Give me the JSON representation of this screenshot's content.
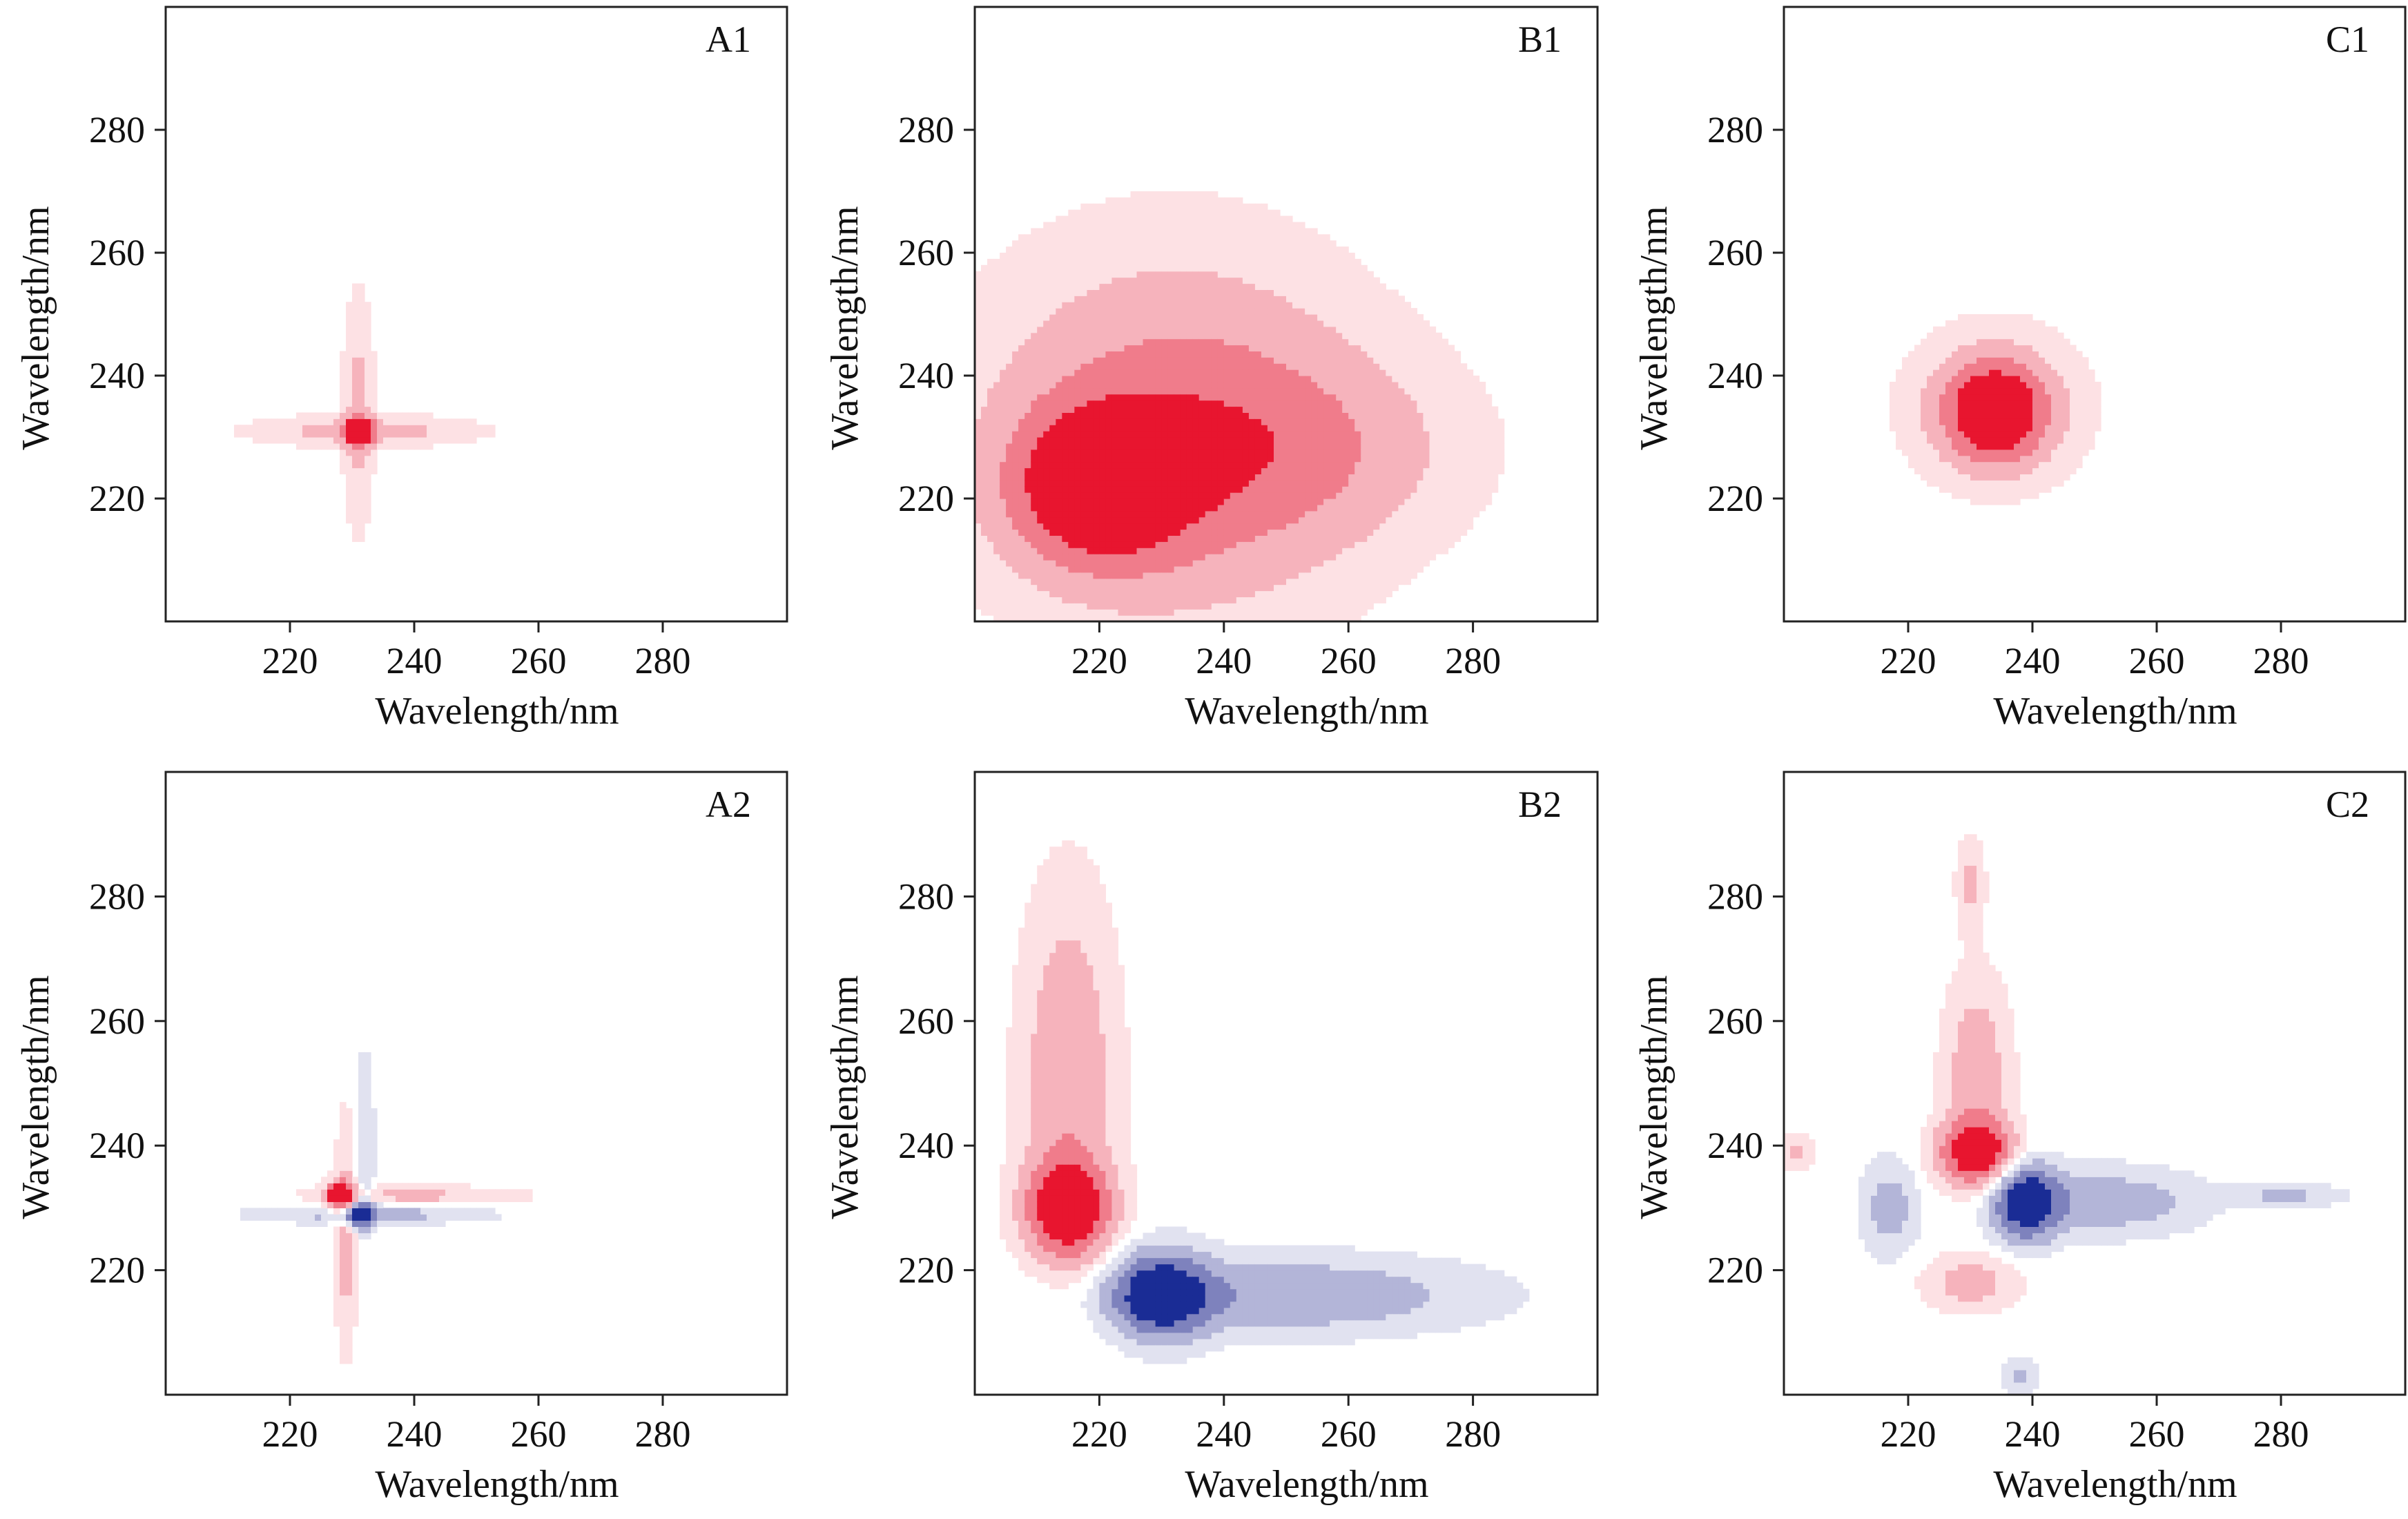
{
  "figure": {
    "description_free": true
  },
  "chart_data": [
    {
      "panel_label": "A1",
      "type": "heatmap",
      "xlabel": "Wavelength/nm",
      "ylabel": "Wavelength/nm",
      "xlim": [
        200,
        300
      ],
      "ylim": [
        200,
        300
      ],
      "xticks": [
        "220",
        "240",
        "260",
        "280"
      ],
      "yticks": [
        "220",
        "240",
        "260",
        "280"
      ],
      "grid": false,
      "peaks": [
        {
          "sign": "positive",
          "x": 231,
          "y": 231,
          "spread_x": 1.5,
          "spread_y": 1.5,
          "intensity": 1.0
        },
        {
          "sign": "positive",
          "x": 232,
          "y": 231,
          "spread_x": 12,
          "spread_y": 1.6,
          "intensity": 0.3
        },
        {
          "sign": "positive",
          "x": 231,
          "y": 234,
          "spread_x": 1.6,
          "spread_y": 12,
          "intensity": 0.28
        }
      ]
    },
    {
      "panel_label": "B1",
      "type": "heatmap",
      "xlabel": "Wavelength/nm",
      "ylabel": "Wavelength/nm",
      "xlim": [
        200,
        300
      ],
      "ylim": [
        200,
        300
      ],
      "xticks": [
        "220",
        "240",
        "260",
        "280"
      ],
      "yticks": [
        "220",
        "240",
        "260",
        "280"
      ],
      "grid": false,
      "peaks": [
        {
          "sign": "positive",
          "x": 220,
          "y": 222,
          "spread_x": 9,
          "spread_y": 8,
          "intensity": 1.0
        },
        {
          "sign": "positive",
          "x": 232,
          "y": 230,
          "spread_x": 20,
          "spread_y": 19,
          "intensity": 0.55
        },
        {
          "sign": "positive",
          "x": 250,
          "y": 228,
          "spread_x": 18,
          "spread_y": 10,
          "intensity": 0.3
        }
      ]
    },
    {
      "panel_label": "C1",
      "type": "heatmap",
      "xlabel": "Wavelength/nm",
      "ylabel": "Wavelength/nm",
      "xlim": [
        200,
        300
      ],
      "ylim": [
        200,
        300
      ],
      "xticks": [
        "220",
        "240",
        "260",
        "280"
      ],
      "yticks": [
        "220",
        "240",
        "260",
        "280"
      ],
      "grid": false,
      "peaks": [
        {
          "sign": "positive",
          "x": 234,
          "y": 234,
          "spread_x": 5,
          "spread_y": 5,
          "intensity": 1.0
        },
        {
          "sign": "positive",
          "x": 234,
          "y": 235,
          "spread_x": 9,
          "spread_y": 8,
          "intensity": 0.35
        }
      ]
    },
    {
      "panel_label": "A2",
      "type": "heatmap",
      "xlabel": "Wavelength/nm",
      "ylabel": "Wavelength/nm",
      "xlim": [
        200,
        300
      ],
      "ylim": [
        200,
        300
      ],
      "xticks": [
        "220",
        "240",
        "260",
        "280"
      ],
      "yticks": [
        "220",
        "240",
        "260",
        "280"
      ],
      "grid": false,
      "peaks": [
        {
          "sign": "positive",
          "x": 228,
          "y": 232,
          "spread_x": 1.5,
          "spread_y": 1.5,
          "intensity": 1.0
        },
        {
          "sign": "negative",
          "x": 231,
          "y": 229,
          "spread_x": 1.5,
          "spread_y": 1.4,
          "intensity": 1.0
        },
        {
          "sign": "positive",
          "x": 229,
          "y": 226,
          "spread_x": 1.2,
          "spread_y": 12,
          "intensity": 0.3
        },
        {
          "sign": "positive",
          "x": 240,
          "y": 232,
          "spread_x": 12,
          "spread_y": 1.0,
          "intensity": 0.25
        },
        {
          "sign": "negative",
          "x": 232,
          "y": 240,
          "spread_x": 1.0,
          "spread_y": 10,
          "intensity": 0.22
        },
        {
          "sign": "negative",
          "x": 233,
          "y": 229,
          "spread_x": 12,
          "spread_y": 1.0,
          "intensity": 0.3
        }
      ]
    },
    {
      "panel_label": "B2",
      "type": "heatmap",
      "xlabel": "Wavelength/nm",
      "ylabel": "Wavelength/nm",
      "xlim": [
        200,
        300
      ],
      "ylim": [
        200,
        300
      ],
      "xticks": [
        "220",
        "240",
        "260",
        "280"
      ],
      "yticks": [
        "220",
        "240",
        "260",
        "280"
      ],
      "grid": false,
      "peaks": [
        {
          "sign": "positive",
          "x": 215,
          "y": 230,
          "spread_x": 4.5,
          "spread_y": 5,
          "intensity": 1.0
        },
        {
          "sign": "positive",
          "x": 215,
          "y": 250,
          "spread_x": 5,
          "spread_y": 20,
          "intensity": 0.4
        },
        {
          "sign": "negative",
          "x": 230,
          "y": 216,
          "spread_x": 5,
          "spread_y": 4.5,
          "intensity": 1.0
        },
        {
          "sign": "negative",
          "x": 250,
          "y": 216,
          "spread_x": 20,
          "spread_y": 4,
          "intensity": 0.4
        }
      ]
    },
    {
      "panel_label": "C2",
      "type": "heatmap",
      "xlabel": "Wavelength/nm",
      "ylabel": "Wavelength/nm",
      "xlim": [
        200,
        300
      ],
      "ylim": [
        200,
        300
      ],
      "xticks": [
        "220",
        "240",
        "260",
        "280"
      ],
      "yticks": [
        "220",
        "240",
        "260",
        "280"
      ],
      "grid": false,
      "peaks": [
        {
          "sign": "positive",
          "x": 231,
          "y": 239,
          "spread_x": 4,
          "spread_y": 3.5,
          "intensity": 1.0
        },
        {
          "sign": "positive",
          "x": 231,
          "y": 252,
          "spread_x": 3.5,
          "spread_y": 10,
          "intensity": 0.35
        },
        {
          "sign": "positive",
          "x": 230,
          "y": 282,
          "spread_x": 1.5,
          "spread_y": 5,
          "intensity": 0.25
        },
        {
          "sign": "positive",
          "x": 230,
          "y": 218,
          "spread_x": 5,
          "spread_y": 3,
          "intensity": 0.3
        },
        {
          "sign": "positive",
          "x": 202,
          "y": 239,
          "spread_x": 2,
          "spread_y": 2,
          "intensity": 0.22
        },
        {
          "sign": "negative",
          "x": 239,
          "y": 231,
          "spread_x": 3.5,
          "spread_y": 4,
          "intensity": 1.0
        },
        {
          "sign": "negative",
          "x": 252,
          "y": 231,
          "spread_x": 10,
          "spread_y": 3.5,
          "intensity": 0.35
        },
        {
          "sign": "negative",
          "x": 281,
          "y": 232,
          "spread_x": 6,
          "spread_y": 1.2,
          "intensity": 0.25
        },
        {
          "sign": "negative",
          "x": 217,
          "y": 230,
          "spread_x": 3,
          "spread_y": 5,
          "intensity": 0.3
        },
        {
          "sign": "negative",
          "x": 238,
          "y": 203,
          "spread_x": 2,
          "spread_y": 2,
          "intensity": 0.22
        }
      ]
    }
  ],
  "colors": {
    "positive": [
      "#fde1e4",
      "#f6b3bc",
      "#f07c8b",
      "#e8152f"
    ],
    "negative": [
      "#e1e2f0",
      "#b3b5d8",
      "#7e82bd",
      "#1a2c95"
    ]
  }
}
